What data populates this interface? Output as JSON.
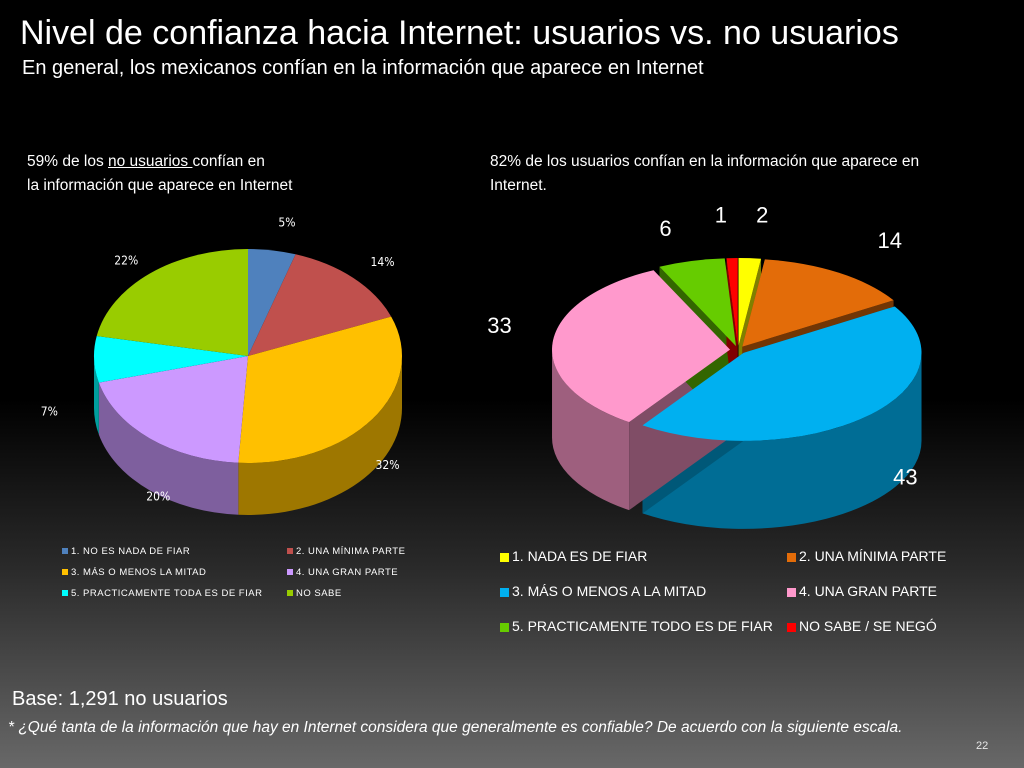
{
  "header": {
    "title": "Nivel de confianza hacia Internet: usuarios vs. no usuarios",
    "subtitle": "En general, los mexicanos confían en la información que aparece en Internet"
  },
  "left_panel": {
    "desc_line1_prefix": "59% de los ",
    "desc_line1_underlined": "no usuarios ",
    "desc_line1_suffix": " confían en",
    "desc_line2": "la información que aparece en Internet"
  },
  "right_panel": {
    "desc": "82% de los usuarios  confían en la información que aparece en Internet."
  },
  "footer": {
    "base": "Base: 1,291 no usuarios",
    "question": "* ¿Qué tanta de la información que hay en Internet considera que generalmente es confiable? De acuerdo con la siguiente escala.",
    "page_number": "22"
  },
  "chart_data": [
    {
      "type": "pie",
      "style": "3d",
      "categories": [
        "1. NO ES NADA DE FIAR",
        "2. UNA MÍNIMA PARTE",
        "3. MÁS O MENOS LA MITAD",
        "4. UNA GRAN PARTE",
        "5. PRACTICAMENTE TODA ES DE FIAR",
        "NO SABE"
      ],
      "values": [
        5,
        14,
        32,
        20,
        7,
        22
      ],
      "labels": [
        "5%",
        "14%",
        "32%",
        "20%",
        "7%",
        "22%"
      ],
      "colors": [
        "#4f81bd",
        "#c0504d",
        "#ffc000",
        "#cc99ff",
        "#00ffff",
        "#99cc00"
      ],
      "legend": "bottom"
    },
    {
      "type": "pie",
      "style": "3d-exploded",
      "categories": [
        "1. NADA ES DE FIAR",
        "2. UNA MÍNIMA PARTE",
        "3. MÁS  O MENOS A LA MITAD",
        "4. UNA GRAN PARTE",
        "5. PRACTICAMENTE TODO ES DE FIAR",
        "NO SABE / SE NEGÓ"
      ],
      "values": [
        2,
        14,
        43,
        33,
        6,
        1
      ],
      "labels": [
        "2",
        "14",
        "43",
        "33",
        "6",
        "1"
      ],
      "colors": [
        "#ffff00",
        "#e36c09",
        "#00b0f0",
        "#ff99cc",
        "#66cc00",
        "#ff0000"
      ],
      "legend": "bottom"
    }
  ]
}
